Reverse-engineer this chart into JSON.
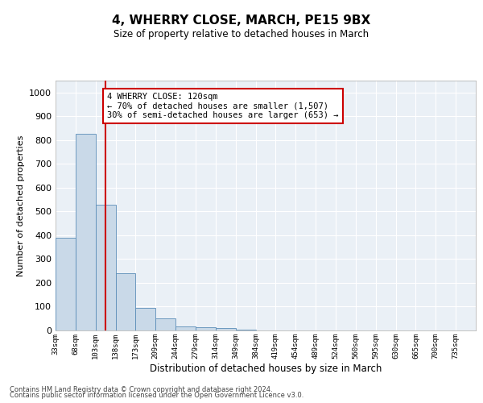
{
  "title1": "4, WHERRY CLOSE, MARCH, PE15 9BX",
  "title2": "Size of property relative to detached houses in March",
  "xlabel": "Distribution of detached houses by size in March",
  "ylabel": "Number of detached properties",
  "bin_labels": [
    "33sqm",
    "68sqm",
    "103sqm",
    "138sqm",
    "173sqm",
    "209sqm",
    "244sqm",
    "279sqm",
    "314sqm",
    "349sqm",
    "384sqm",
    "419sqm",
    "454sqm",
    "489sqm",
    "524sqm",
    "560sqm",
    "595sqm",
    "630sqm",
    "665sqm",
    "700sqm",
    "735sqm"
  ],
  "bar_values": [
    390,
    825,
    530,
    240,
    95,
    50,
    18,
    15,
    10,
    5,
    0,
    0,
    0,
    0,
    0,
    0,
    0,
    0,
    0,
    0,
    0
  ],
  "bar_color": "#c9d9e8",
  "bar_edge_color": "#5b8db8",
  "annotation_text": "4 WHERRY CLOSE: 120sqm\n← 70% of detached houses are smaller (1,507)\n30% of semi-detached houses are larger (653) →",
  "annotation_box_color": "#ffffff",
  "annotation_box_edge": "#cc0000",
  "red_line_color": "#cc0000",
  "ylim": [
    0,
    1050
  ],
  "yticks": [
    0,
    100,
    200,
    300,
    400,
    500,
    600,
    700,
    800,
    900,
    1000
  ],
  "background_color": "#eaf0f6",
  "grid_color": "#ffffff",
  "footer1": "Contains HM Land Registry data © Crown copyright and database right 2024.",
  "footer2": "Contains public sector information licensed under the Open Government Licence v3.0."
}
